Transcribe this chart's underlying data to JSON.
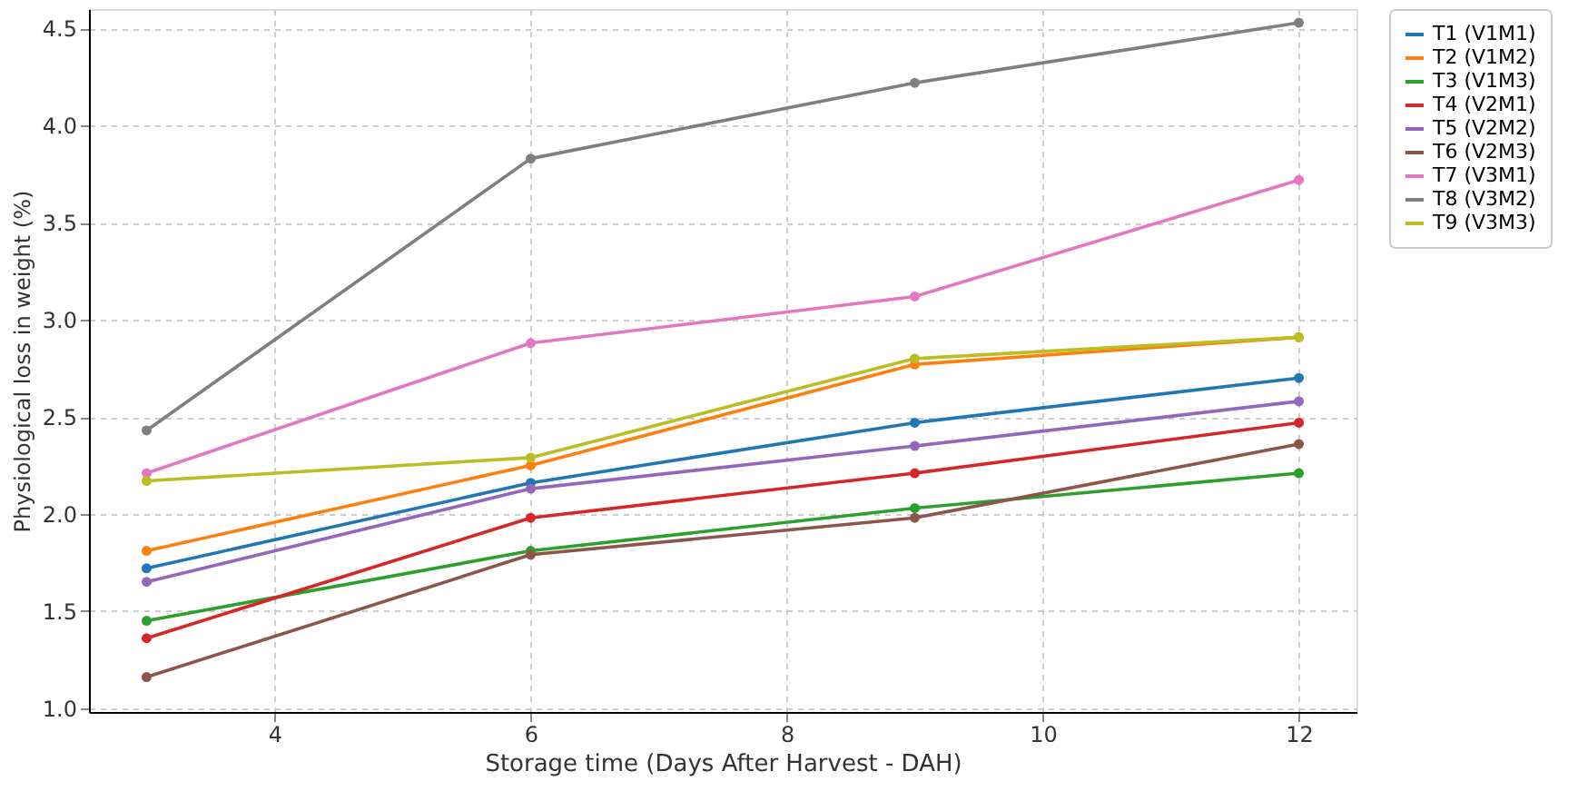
{
  "chart_data": {
    "type": "line",
    "xlabel": "Storage time (Days After Harvest - DAH)",
    "ylabel": "Physiological loss in weight (%)",
    "x": [
      3,
      6,
      9,
      12
    ],
    "series": [
      {
        "name": "T1 (V1M1)",
        "color": "#1f77b4",
        "values": [
          1.72,
          2.16,
          2.47,
          2.7
        ]
      },
      {
        "name": "T2 (V1M2)",
        "color": "#ff7f0e",
        "values": [
          1.81,
          2.25,
          2.77,
          2.91
        ]
      },
      {
        "name": "T3 (V1M3)",
        "color": "#2ca02c",
        "values": [
          1.45,
          1.81,
          2.03,
          2.21
        ]
      },
      {
        "name": "T4 (V2M1)",
        "color": "#d62728",
        "values": [
          1.36,
          1.98,
          2.21,
          2.47
        ]
      },
      {
        "name": "T5 (V2M2)",
        "color": "#9467bd",
        "values": [
          1.65,
          2.13,
          2.35,
          2.58
        ]
      },
      {
        "name": "T6 (V2M3)",
        "color": "#8c564b",
        "values": [
          1.16,
          1.79,
          1.98,
          2.36
        ]
      },
      {
        "name": "T7 (V3M1)",
        "color": "#e377c2",
        "values": [
          2.21,
          2.88,
          3.12,
          3.72
        ]
      },
      {
        "name": "T8 (V3M2)",
        "color": "#7f7f7f",
        "values": [
          2.43,
          3.83,
          4.22,
          4.53
        ]
      },
      {
        "name": "T9 (V3M3)",
        "color": "#bcbd22",
        "values": [
          2.17,
          2.29,
          2.8,
          2.91
        ]
      }
    ],
    "xlim": [
      2.55,
      12.45
    ],
    "xticks": [
      4,
      6,
      8,
      10,
      12
    ],
    "ylim": [
      0.98,
      4.6
    ],
    "yticks": [
      {
        "value": 1.0,
        "label": "1.0"
      },
      {
        "value": 1.5,
        "label": "1.5"
      },
      {
        "value": 2.0,
        "label": "2.0"
      },
      {
        "value": 2.5,
        "label": "2.5"
      },
      {
        "value": 3.0,
        "label": "3.0"
      },
      {
        "value": 3.5,
        "label": "3.5"
      },
      {
        "value": 4.0,
        "label": "4.0"
      },
      {
        "value": 4.5,
        "label": "4.5"
      }
    ],
    "grid": true,
    "legend": "top right",
    "marker": "circle",
    "line_style": "solid"
  }
}
